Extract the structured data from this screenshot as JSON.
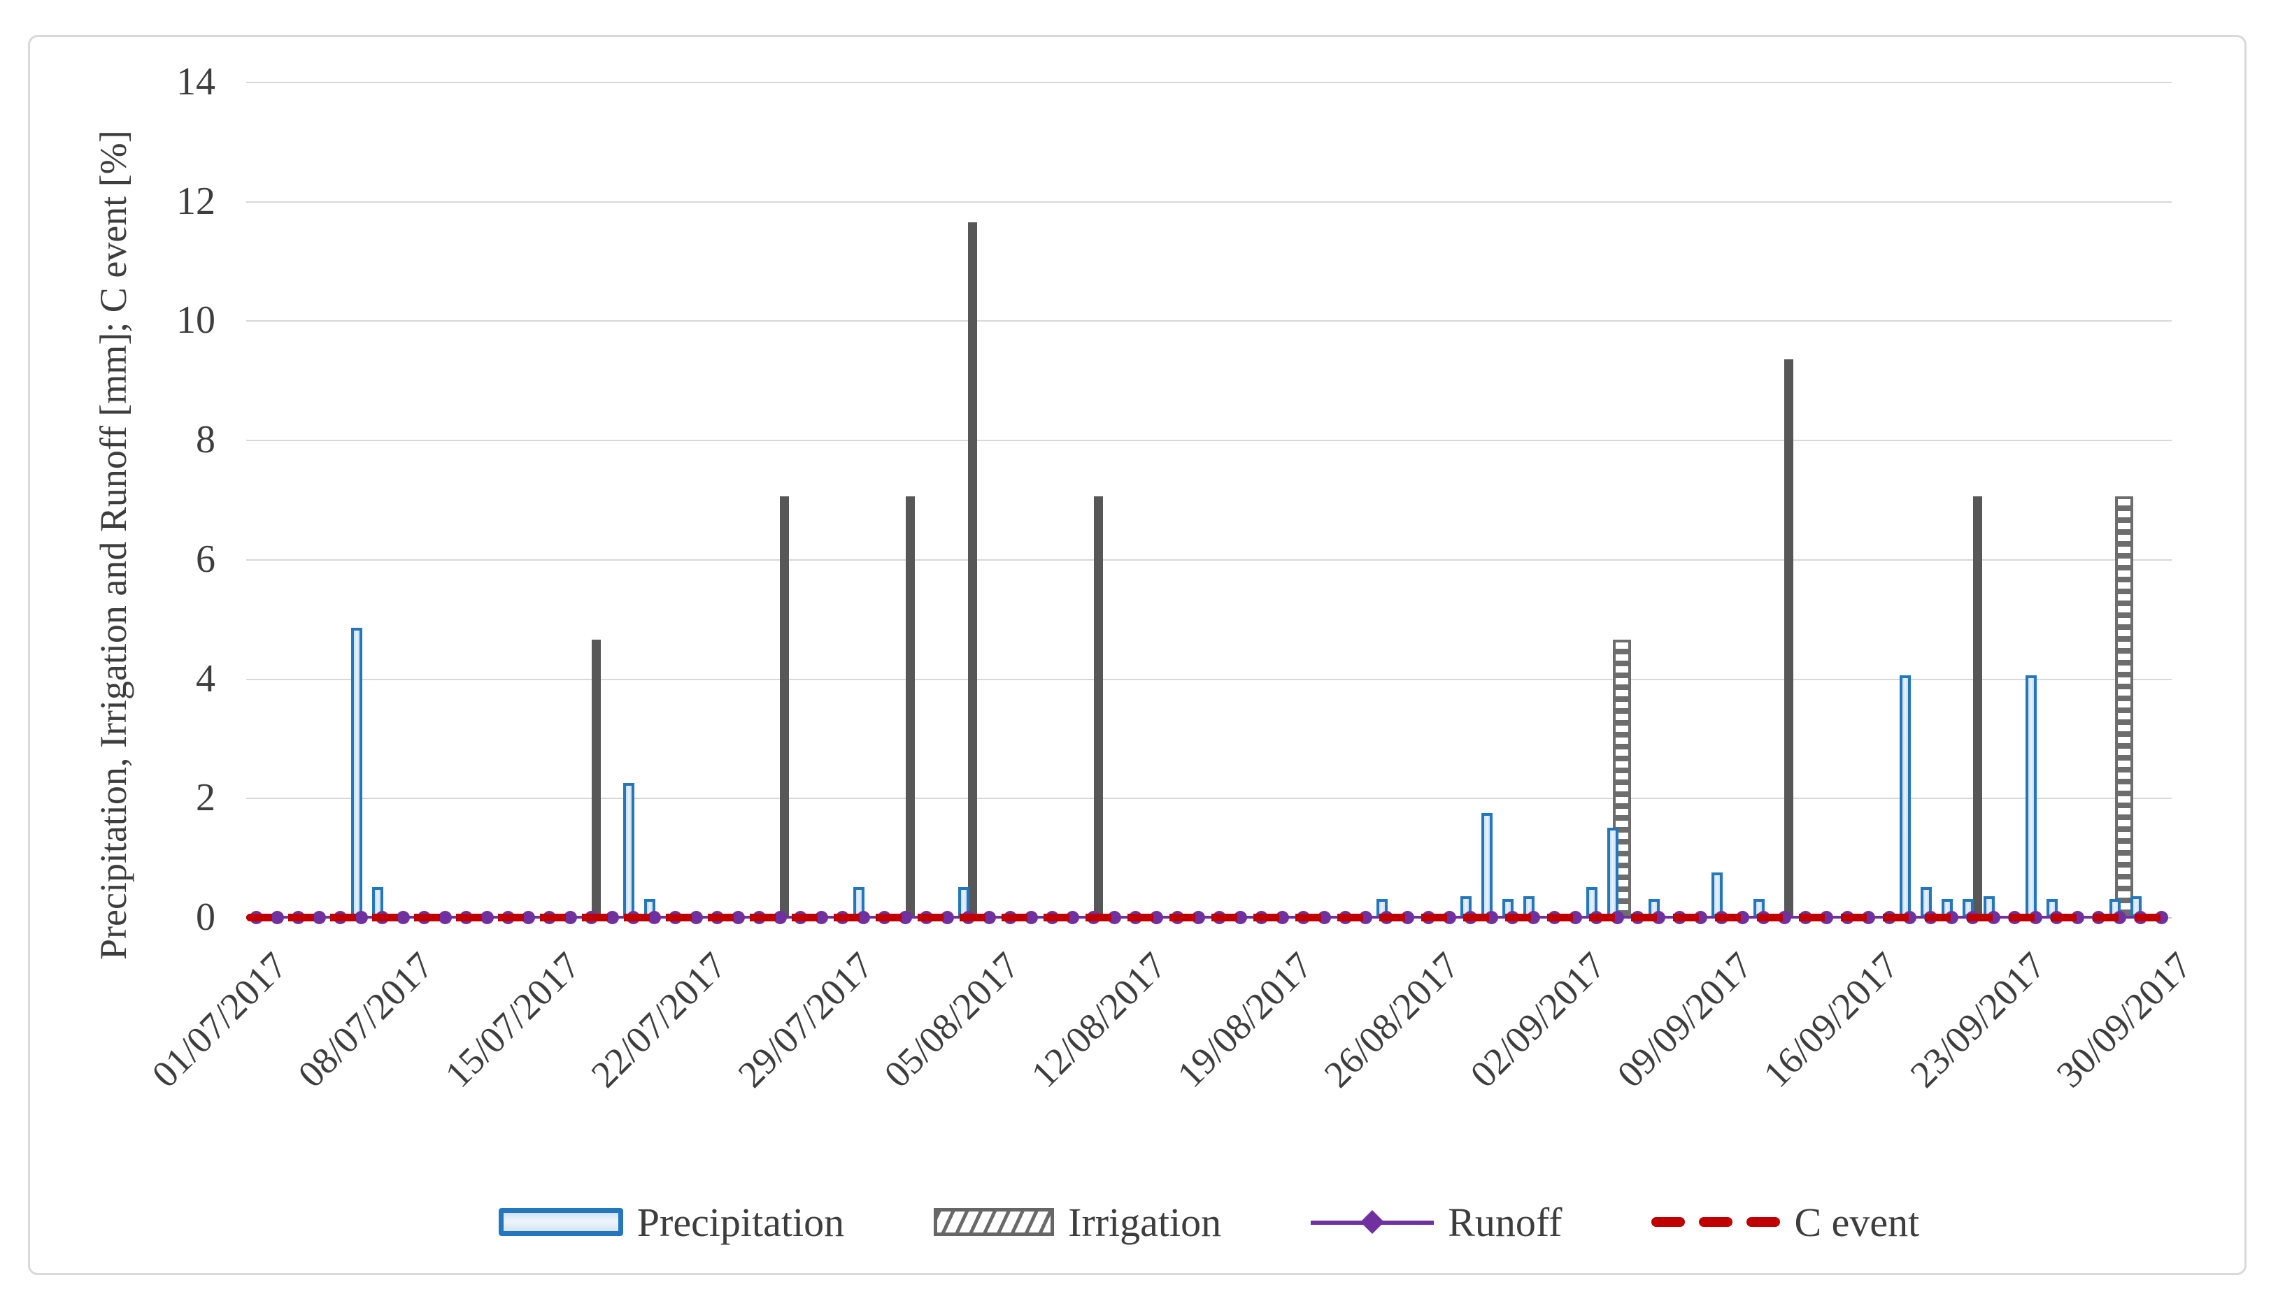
{
  "figure": {
    "background_color": "#ffffff",
    "frame_border_color": "#d9d9d9"
  },
  "chart_data": {
    "type": "bar",
    "title": "",
    "xlabel": "",
    "ylabel": "Precipitation, Irrigation and Runoff [mm]; C event [%]",
    "ylim": [
      0,
      14
    ],
    "yticks": [
      0,
      2,
      4,
      6,
      8,
      10,
      12,
      14
    ],
    "grid": true,
    "legend_position": "bottom",
    "x_is_daily_date_axis": true,
    "x_start_date": "01/07/2017",
    "x_end_date": "30/09/2017",
    "x_tick_labels": [
      "01/07/2017",
      "08/07/2017",
      "15/07/2017",
      "22/07/2017",
      "29/07/2017",
      "05/08/2017",
      "12/08/2017",
      "19/08/2017",
      "26/08/2017",
      "02/09/2017",
      "09/09/2017",
      "16/09/2017",
      "23/09/2017",
      "30/09/2017"
    ],
    "series": [
      {
        "name": "Precipitation",
        "type": "bar",
        "border_color": "#2577bd",
        "fill_color": "#d9e7f5",
        "points": [
          {
            "date": "06/07/2017",
            "value": 4.85
          },
          {
            "date": "07/07/2017",
            "value": 0.5
          },
          {
            "date": "19/07/2017",
            "value": 2.25
          },
          {
            "date": "20/07/2017",
            "value": 0.3
          },
          {
            "date": "30/07/2017",
            "value": 0.5
          },
          {
            "date": "04/08/2017",
            "value": 0.5
          },
          {
            "date": "24/08/2017",
            "value": 0.3
          },
          {
            "date": "28/08/2017",
            "value": 0.35
          },
          {
            "date": "29/08/2017",
            "value": 1.75
          },
          {
            "date": "30/08/2017",
            "value": 0.3
          },
          {
            "date": "31/08/2017",
            "value": 0.35
          },
          {
            "date": "03/09/2017",
            "value": 0.5
          },
          {
            "date": "04/09/2017",
            "value": 1.5
          },
          {
            "date": "06/09/2017",
            "value": 0.3
          },
          {
            "date": "09/09/2017",
            "value": 0.75
          },
          {
            "date": "11/09/2017",
            "value": 0.3
          },
          {
            "date": "18/09/2017",
            "value": 4.05
          },
          {
            "date": "19/09/2017",
            "value": 0.5
          },
          {
            "date": "20/09/2017",
            "value": 0.3
          },
          {
            "date": "21/09/2017",
            "value": 0.3
          },
          {
            "date": "22/09/2017",
            "value": 0.35
          },
          {
            "date": "24/09/2017",
            "value": 4.05
          },
          {
            "date": "25/09/2017",
            "value": 0.3
          },
          {
            "date": "28/09/2017",
            "value": 0.3
          },
          {
            "date": "29/09/2017",
            "value": 0.35
          }
        ]
      },
      {
        "name": "Irrigation",
        "type": "bar",
        "solid_color": "#575757",
        "hatch_color": "#6d6d6d",
        "points": [
          {
            "date": "17/07/2017",
            "value": 4.65,
            "hatched": false
          },
          {
            "date": "26/07/2017",
            "value": 7.05,
            "hatched": false
          },
          {
            "date": "01/08/2017",
            "value": 7.05,
            "hatched": false
          },
          {
            "date": "04/08/2017",
            "value": 11.65,
            "hatched": false
          },
          {
            "date": "10/08/2017",
            "value": 7.05,
            "hatched": false
          },
          {
            "date": "04/09/2017",
            "value": 4.65,
            "hatched": true
          },
          {
            "date": "12/09/2017",
            "value": 9.35,
            "hatched": false
          },
          {
            "date": "21/09/2017",
            "value": 7.05,
            "hatched": false
          },
          {
            "date": "28/09/2017",
            "value": 7.05,
            "hatched": true
          }
        ]
      },
      {
        "name": "Runoff",
        "type": "line",
        "color": "#7030a0",
        "marker": "circle",
        "constant_value": 0,
        "note": "flat at 0 for every day with a marker per day"
      },
      {
        "name": "C event",
        "type": "dashed-line",
        "color": "#c00000",
        "constant_value": 0,
        "note": "flat dashed line at 0 across the whole axis"
      }
    ]
  },
  "legend": {
    "items": [
      {
        "label": "Precipitation"
      },
      {
        "label": "Irrigation"
      },
      {
        "label": "Runoff"
      },
      {
        "label": "C event"
      }
    ]
  }
}
